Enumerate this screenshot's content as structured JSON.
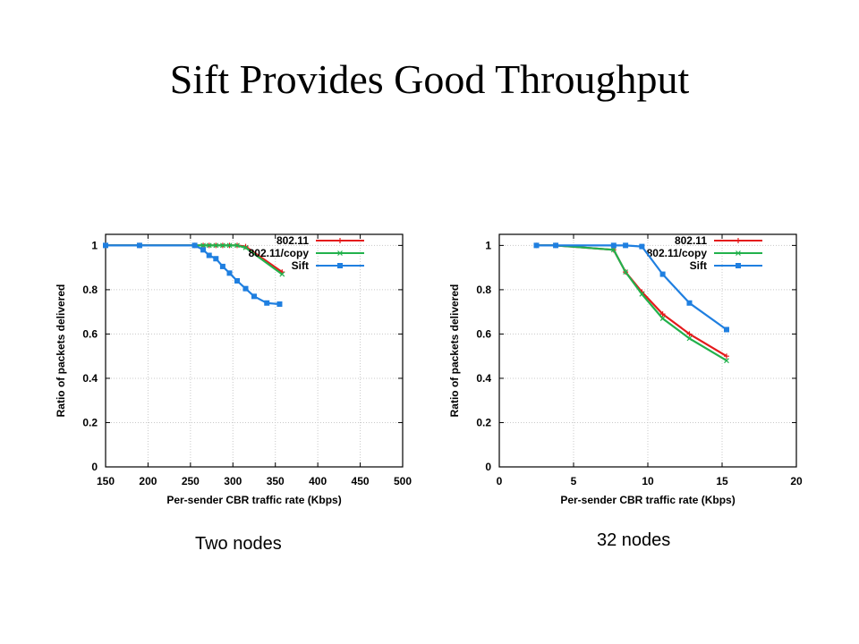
{
  "slide": {
    "title": "Sift Provides Good Throughput"
  },
  "colors": {
    "s80211": "#e41a1c",
    "copy": "#22b14c",
    "sift": "#1f7fe0",
    "grid": "#c8c8c8"
  },
  "chart_data": [
    {
      "type": "line",
      "caption": "Two nodes",
      "xlabel": "Per-sender CBR traffic rate (Kbps)",
      "ylabel": "Ratio of packets delivered",
      "xlim": [
        150,
        500
      ],
      "ylim": [
        0,
        1.05
      ],
      "xticks": [
        150,
        200,
        250,
        300,
        350,
        400,
        450,
        500
      ],
      "yticks": [
        0,
        0.2,
        0.4,
        0.6,
        0.8,
        1
      ],
      "grid": true,
      "legend": "top-right",
      "series": [
        {
          "name": "802.11",
          "color": "#e41a1c",
          "marker": "plus",
          "x": [
            150,
            190,
            255,
            265,
            272,
            280,
            288,
            296,
            305,
            315,
            358
          ],
          "y": [
            1,
            1,
            1,
            1,
            1,
            1,
            1,
            1,
            1,
            0.995,
            0.88
          ]
        },
        {
          "name": "802.11/copy",
          "color": "#22b14c",
          "marker": "x",
          "x": [
            150,
            190,
            255,
            265,
            272,
            280,
            288,
            296,
            305,
            315,
            358
          ],
          "y": [
            1,
            1,
            1,
            1,
            1,
            1,
            1,
            1,
            1,
            0.99,
            0.87
          ]
        },
        {
          "name": "Sift",
          "color": "#1f7fe0",
          "marker": "square",
          "x": [
            150,
            190,
            255,
            265,
            272,
            280,
            288,
            296,
            305,
            315,
            325,
            340,
            355
          ],
          "y": [
            1,
            1,
            1,
            0.98,
            0.955,
            0.94,
            0.905,
            0.875,
            0.84,
            0.805,
            0.77,
            0.74,
            0.735
          ]
        }
      ]
    },
    {
      "type": "line",
      "caption": "32 nodes",
      "xlabel": "Per-sender CBR traffic rate (Kbps)",
      "ylabel": "Ratio of packets delivered",
      "xlim": [
        0,
        20
      ],
      "ylim": [
        0,
        1.05
      ],
      "xticks": [
        0,
        5,
        10,
        15,
        20
      ],
      "yticks": [
        0,
        0.2,
        0.4,
        0.6,
        0.8,
        1
      ],
      "grid": true,
      "legend": "top-right",
      "series": [
        {
          "name": "802.11",
          "color": "#e41a1c",
          "marker": "plus",
          "x": [
            2.5,
            3.8,
            7.7,
            8.5,
            9.6,
            11,
            12.8,
            15.3
          ],
          "y": [
            1,
            1,
            0.98,
            0.88,
            0.79,
            0.69,
            0.6,
            0.5
          ]
        },
        {
          "name": "802.11/copy",
          "color": "#22b14c",
          "marker": "x",
          "x": [
            2.5,
            3.8,
            7.7,
            8.5,
            9.6,
            11,
            12.8,
            15.3
          ],
          "y": [
            1,
            1,
            0.98,
            0.88,
            0.78,
            0.67,
            0.58,
            0.48
          ]
        },
        {
          "name": "Sift",
          "color": "#1f7fe0",
          "marker": "square",
          "x": [
            2.5,
            3.8,
            7.7,
            8.5,
            9.6,
            11,
            12.8,
            15.3
          ],
          "y": [
            1,
            1,
            1,
            1,
            0.995,
            0.87,
            0.74,
            0.62
          ]
        }
      ]
    }
  ]
}
